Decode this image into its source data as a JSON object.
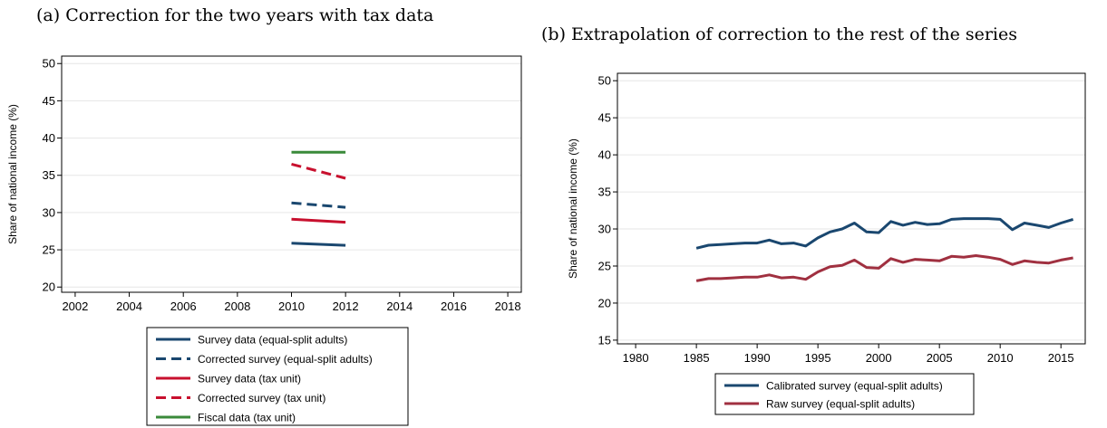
{
  "captions": {
    "a": "(a) Correction for the two years with tax data",
    "b": "(b) Extrapolation of correction to the rest of the series"
  },
  "chart_data": [
    {
      "type": "line",
      "title": "(a) Correction for the two years with tax data",
      "xlabel": "",
      "ylabel": "Share of national income (%)",
      "xlim": [
        2001.5,
        2018.5
      ],
      "ylim": [
        19.3,
        51
      ],
      "xticks": [
        2002,
        2004,
        2006,
        2008,
        2010,
        2012,
        2014,
        2016,
        2018
      ],
      "yticks": [
        20,
        25,
        30,
        35,
        40,
        45,
        50
      ],
      "grid": true,
      "legend_position": "bottom",
      "series": [
        {
          "name": "Survey data (equal-split adults)",
          "color": "#1a476f",
          "dash": "solid",
          "x": [
            2010,
            2012
          ],
          "y": [
            25.9,
            25.6
          ]
        },
        {
          "name": "Corrected survey (equal-split adults)",
          "color": "#1a476f",
          "dash": "dashed",
          "x": [
            2010,
            2012
          ],
          "y": [
            31.3,
            30.7
          ]
        },
        {
          "name": "Survey data (tax unit)",
          "color": "#c8102e",
          "dash": "solid",
          "x": [
            2010,
            2012
          ],
          "y": [
            29.1,
            28.7
          ]
        },
        {
          "name": "Corrected survey (tax unit)",
          "color": "#c8102e",
          "dash": "dashed",
          "x": [
            2010,
            2012
          ],
          "y": [
            36.5,
            34.6
          ]
        },
        {
          "name": "Fiscal data (tax unit)",
          "color": "#3a8a3a",
          "dash": "solid",
          "x": [
            2010,
            2012
          ],
          "y": [
            38.1,
            38.1
          ]
        }
      ]
    },
    {
      "type": "line",
      "title": "(b) Extrapolation of correction to the rest of the series",
      "xlabel": "",
      "ylabel": "Share of national income (%)",
      "xlim": [
        1978.5,
        2017
      ],
      "ylim": [
        14.5,
        51
      ],
      "xticks": [
        1980,
        1985,
        1990,
        1995,
        2000,
        2005,
        2010,
        2015
      ],
      "yticks": [
        15,
        20,
        25,
        30,
        35,
        40,
        45,
        50
      ],
      "grid": true,
      "legend_position": "bottom",
      "series": [
        {
          "name": "Calibrated survey (equal-split adults)",
          "color": "#1a476f",
          "dash": "solid",
          "x": [
            1985,
            1986,
            1987,
            1988,
            1989,
            1990,
            1991,
            1992,
            1993,
            1994,
            1995,
            1996,
            1997,
            1998,
            1999,
            2000,
            2001,
            2002,
            2003,
            2004,
            2005,
            2006,
            2007,
            2008,
            2009,
            2010,
            2011,
            2012,
            2013,
            2014,
            2015,
            2016
          ],
          "y": [
            27.4,
            27.8,
            27.9,
            28.0,
            28.1,
            28.1,
            28.5,
            28.0,
            28.1,
            27.7,
            28.8,
            29.6,
            30.0,
            30.8,
            29.6,
            29.5,
            31.0,
            30.5,
            30.9,
            30.6,
            30.7,
            31.3,
            31.4,
            31.4,
            31.4,
            31.3,
            29.9,
            30.8,
            30.5,
            30.2,
            30.8,
            31.3
          ]
        },
        {
          "name": "Raw survey (equal-split adults)",
          "color": "#a03040",
          "dash": "solid",
          "x": [
            1985,
            1986,
            1987,
            1988,
            1989,
            1990,
            1991,
            1992,
            1993,
            1994,
            1995,
            1996,
            1997,
            1998,
            1999,
            2000,
            2001,
            2002,
            2003,
            2004,
            2005,
            2006,
            2007,
            2008,
            2009,
            2010,
            2011,
            2012,
            2013,
            2014,
            2015,
            2016
          ],
          "y": [
            23.0,
            23.3,
            23.3,
            23.4,
            23.5,
            23.5,
            23.8,
            23.4,
            23.5,
            23.2,
            24.2,
            24.9,
            25.1,
            25.8,
            24.8,
            24.7,
            26.0,
            25.5,
            25.9,
            25.8,
            25.7,
            26.3,
            26.2,
            26.4,
            26.2,
            25.9,
            25.2,
            25.7,
            25.5,
            25.4,
            25.8,
            26.1
          ]
        }
      ]
    }
  ]
}
